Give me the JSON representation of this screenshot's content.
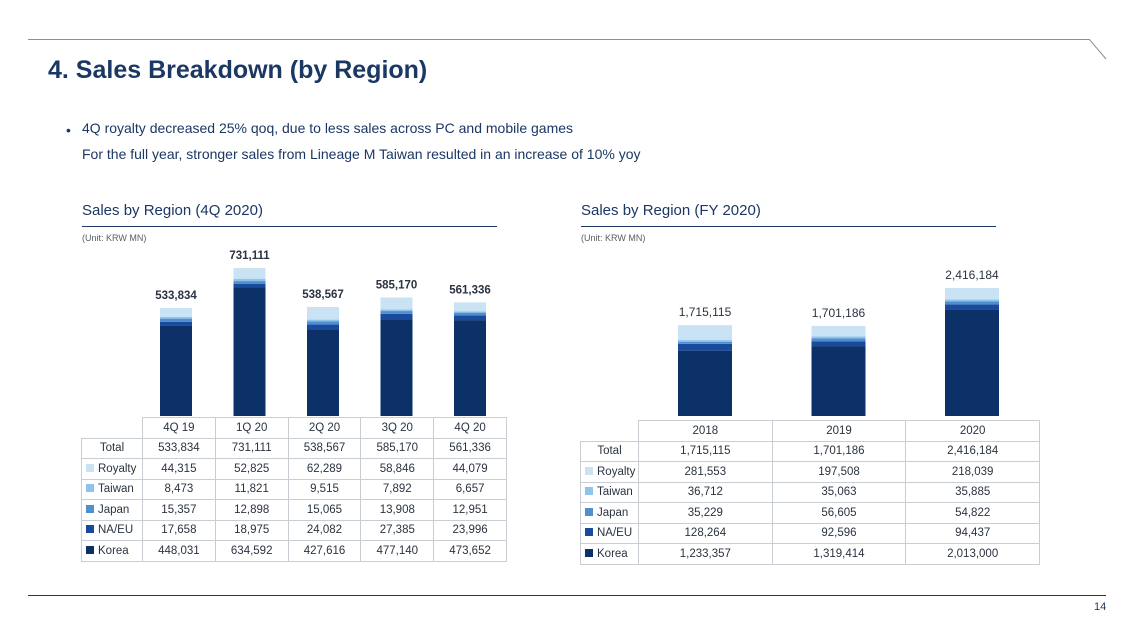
{
  "slide": {
    "title": "4. Sales Breakdown (by Region)",
    "bullet_marker": "•",
    "bullets": [
      "4Q royalty decreased 25% qoq, due to less sales across PC and mobile games",
      "For the full year, stronger sales from Lineage M Taiwan resulted in an increase of 10% yoy"
    ],
    "page_number": "14"
  },
  "colors": {
    "Korea": "#0b3168",
    "NA/EU": "#1a4a9c",
    "Japan": "#4f8fd0",
    "Taiwan": "#8ec3ea",
    "Royalty": "#c9e3f5"
  },
  "chart_data": [
    {
      "type": "bar",
      "stacked": true,
      "title": "Sales by Region (4Q 2020)",
      "unit": "(Unit: KRW MN)",
      "categories": [
        "4Q 19",
        "1Q 20",
        "2Q 20",
        "3Q 20",
        "4Q 20"
      ],
      "totals": [
        533834,
        731111,
        538567,
        585170,
        561336
      ],
      "total_labels": [
        "533,834",
        "731,111",
        "538,567",
        "585,170",
        "561,336"
      ],
      "total_row_label": "Total",
      "series": [
        {
          "name": "Korea",
          "values": [
            448031,
            634592,
            427616,
            477140,
            473652
          ],
          "labels": [
            "448,031",
            "634,592",
            "427,616",
            "477,140",
            "473,652"
          ]
        },
        {
          "name": "NA/EU",
          "values": [
            17658,
            18975,
            24082,
            27385,
            23996
          ],
          "labels": [
            "17,658",
            "18,975",
            "24,082",
            "27,385",
            "23,996"
          ]
        },
        {
          "name": "Japan",
          "values": [
            15357,
            12898,
            15065,
            13908,
            12951
          ],
          "labels": [
            "15,357",
            "12,898",
            "15,065",
            "13,908",
            "12,951"
          ]
        },
        {
          "name": "Taiwan",
          "values": [
            8473,
            11821,
            9515,
            7892,
            6657
          ],
          "labels": [
            "8,473",
            "11,821",
            "9,515",
            "7,892",
            "6,657"
          ]
        },
        {
          "name": "Royalty",
          "values": [
            44315,
            52825,
            62289,
            58846,
            44079
          ],
          "labels": [
            "44,315",
            "52,825",
            "62,289",
            "58,846",
            "44,079"
          ]
        }
      ],
      "table_row_order": [
        "Royalty",
        "Taiwan",
        "Japan",
        "NA/EU",
        "Korea"
      ],
      "ylim": [
        0,
        731111
      ]
    },
    {
      "type": "bar",
      "stacked": true,
      "title": "Sales by Region (FY 2020)",
      "unit": "(Unit: KRW MN)",
      "categories": [
        "2018",
        "2019",
        "2020"
      ],
      "totals": [
        1715115,
        1701186,
        2416184
      ],
      "total_labels": [
        "1,715,115",
        "1,701,186",
        "2,416,184"
      ],
      "total_row_label": "Total",
      "series": [
        {
          "name": "Korea",
          "values": [
            1233357,
            1319414,
            2013000
          ],
          "labels": [
            "1,233,357",
            "1,319,414",
            "2,013,000"
          ]
        },
        {
          "name": "NA/EU",
          "values": [
            128264,
            92596,
            94437
          ],
          "labels": [
            "128,264",
            "92,596",
            "94,437"
          ]
        },
        {
          "name": "Japan",
          "values": [
            35229,
            56605,
            54822
          ],
          "labels": [
            "35,229",
            "56,605",
            "54,822"
          ]
        },
        {
          "name": "Taiwan",
          "values": [
            36712,
            35063,
            35885
          ],
          "labels": [
            "36,712",
            "35,063",
            "35,885"
          ]
        },
        {
          "name": "Royalty",
          "values": [
            281553,
            197508,
            218039
          ],
          "labels": [
            "281,553",
            "197,508",
            "218,039"
          ]
        }
      ],
      "table_row_order": [
        "Royalty",
        "Taiwan",
        "Japan",
        "NA/EU",
        "Korea"
      ],
      "ylim": [
        0,
        2416184
      ]
    }
  ]
}
